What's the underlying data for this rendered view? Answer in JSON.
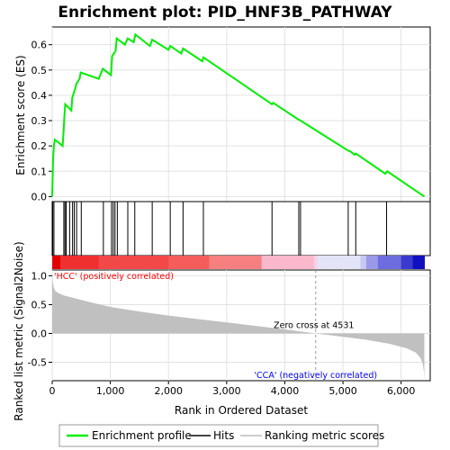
{
  "chart_data": {
    "type": "line",
    "title": "Enrichment plot: PID_HNF3B_PATHWAY",
    "es_ylabel": "Enrichment score (ES)",
    "metric_ylabel": "Ranked list metric (Signal2Noise)",
    "xlabel": "Rank in Ordered Dataset",
    "x_ticks": [
      0,
      1000,
      2000,
      3000,
      4000,
      5000,
      6000
    ],
    "x_tick_labels": [
      "0",
      "1,000",
      "2,000",
      "3,000",
      "4,000",
      "5,000",
      "6,000"
    ],
    "xlim": [
      0,
      6500
    ],
    "es_ylim": [
      -0.02,
      0.67
    ],
    "es_ticks": [
      0.0,
      0.1,
      0.2,
      0.3,
      0.4,
      0.5,
      0.6
    ],
    "es_tick_labels": [
      "0.0",
      "0.1",
      "0.2",
      "0.3",
      "0.4",
      "0.5",
      "0.6"
    ],
    "metric_ylim": [
      -0.82,
      1.1
    ],
    "metric_ticks": [
      1.0,
      0.5,
      0.0,
      -0.5
    ],
    "metric_tick_labels": [
      "1.0",
      "0.5",
      "0.0",
      "-0.5"
    ],
    "series": [
      {
        "name": "Enrichment profile",
        "color": "#00ee00",
        "x": [
          0,
          15,
          30,
          45,
          180,
          195,
          210,
          225,
          330,
          345,
          400,
          415,
          470,
          490,
          800,
          870,
          1010,
          1030,
          1090,
          1110,
          1250,
          1300,
          1400,
          1430,
          1680,
          1720,
          2000,
          2030,
          2220,
          2250,
          2580,
          2600,
          3780,
          3800,
          4230,
          4270,
          5100,
          5120,
          5200,
          5220,
          5730,
          5760,
          6400
        ],
        "y": [
          0.0,
          0.15,
          0.2,
          0.225,
          0.2,
          0.255,
          0.32,
          0.365,
          0.34,
          0.39,
          0.43,
          0.445,
          0.465,
          0.49,
          0.465,
          0.505,
          0.48,
          0.555,
          0.575,
          0.625,
          0.6,
          0.625,
          0.61,
          0.64,
          0.595,
          0.62,
          0.58,
          0.595,
          0.565,
          0.585,
          0.535,
          0.55,
          0.365,
          0.37,
          0.305,
          0.3,
          0.18,
          0.18,
          0.165,
          0.17,
          0.09,
          0.1,
          0.0
        ]
      }
    ],
    "hits": [
      10,
      30,
      200,
      220,
      240,
      300,
      350,
      380,
      420,
      500,
      880,
      1020,
      1050,
      1080,
      1120,
      1300,
      1420,
      1720,
      2030,
      2250,
      2600,
      3780,
      4240,
      4270,
      5090,
      5220,
      5750
    ],
    "metric_curve": {
      "x": [
        0,
        5,
        20,
        50,
        100,
        200,
        350,
        500,
        700,
        1000,
        1500,
        2000,
        2500,
        3000,
        3500,
        4000,
        4531,
        5000,
        5400,
        5800,
        6100,
        6250,
        6330,
        6370,
        6390,
        6400
      ],
      "y": [
        1.1,
        0.95,
        0.82,
        0.74,
        0.7,
        0.66,
        0.62,
        0.58,
        0.53,
        0.46,
        0.38,
        0.31,
        0.25,
        0.19,
        0.13,
        0.07,
        0.0,
        -0.06,
        -0.11,
        -0.18,
        -0.26,
        -0.33,
        -0.42,
        -0.52,
        -0.65,
        -0.82
      ]
    },
    "zero_cross_x": 4531,
    "annotations": {
      "positive": "'HCC' (positively correlated)",
      "negative": "'CCA' (negatively correlated)",
      "zero_cross": "Zero cross at 4531"
    },
    "colors": {
      "positive_label": "#ff0000",
      "negative_label": "#0000ff",
      "hit": "#000000",
      "metric_fill": "#c0c0c0",
      "zero_line": "#999999"
    },
    "heat_stops": [
      {
        "x": 0,
        "color": "#e00000"
      },
      {
        "x": 140,
        "color": "#f03030"
      },
      {
        "x": 800,
        "color": "#f24848"
      },
      {
        "x": 2000,
        "color": "#f55c5c"
      },
      {
        "x": 2700,
        "color": "#f68080"
      },
      {
        "x": 3600,
        "color": "#f9b8cc"
      },
      {
        "x": 4500,
        "color": "#f3d2e4"
      },
      {
        "x": 4560,
        "color": "#e4e4f8"
      },
      {
        "x": 5300,
        "color": "#c8c8f2"
      },
      {
        "x": 5400,
        "color": "#9a9ae8"
      },
      {
        "x": 5600,
        "color": "#6d6de0"
      },
      {
        "x": 6000,
        "color": "#3a3acf"
      },
      {
        "x": 6200,
        "color": "#1010c0"
      },
      {
        "x": 6400,
        "color": "#0000b0"
      }
    ],
    "legend": [
      {
        "label": "Enrichment profile",
        "color": "#00ee00",
        "kind": "line"
      },
      {
        "label": "Hits",
        "color": "#444444",
        "kind": "line"
      },
      {
        "label": "Ranking metric scores",
        "color": "#cccccc",
        "kind": "line"
      }
    ]
  }
}
